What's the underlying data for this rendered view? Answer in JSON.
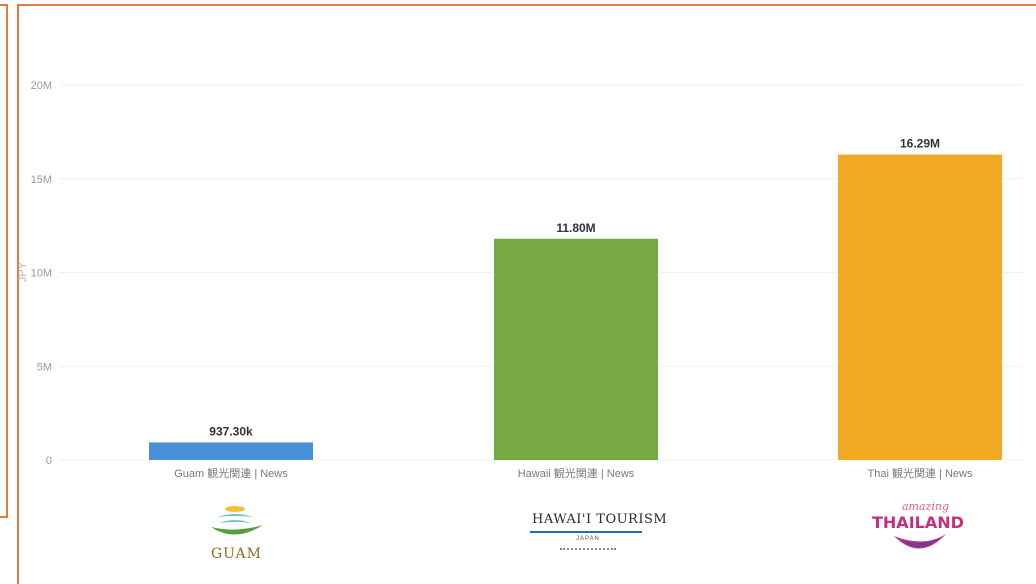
{
  "chart_data": {
    "type": "bar",
    "categories": [
      "Guam 観光関連 | News",
      "Hawaii 観光関連 | News",
      "Thai 観光関連 | News"
    ],
    "values": [
      937300,
      11800000,
      16290000
    ],
    "value_labels": [
      "937.30k",
      "11.80M",
      "16.29M"
    ],
    "colors": [
      "#4a90d9",
      "#76a843",
      "#f4a922"
    ],
    "ylabel": "JPY",
    "ylim": [
      0,
      20000000
    ],
    "yticks": [
      0,
      5000000,
      10000000,
      15000000,
      20000000
    ],
    "ytick_labels": [
      "0",
      "5M",
      "10M",
      "15M",
      "20M"
    ],
    "grid": true,
    "legend": "none"
  },
  "logos": [
    {
      "name": "guam",
      "text": "GUAM",
      "colors": [
        "#f2c230",
        "#7bbfc9",
        "#5a9e3f",
        "#8a6d1f"
      ]
    },
    {
      "name": "hawaii",
      "text": "HAWAI'I TOURISM",
      "subtext": "JAPAN",
      "colors": [
        "#1f6fb5",
        "#2a2a2a"
      ]
    },
    {
      "name": "thailand",
      "text_small": "amazing",
      "text": "THAILAND",
      "colors": [
        "#c2307e",
        "#e05a8f",
        "#7a3b8f"
      ]
    }
  ]
}
